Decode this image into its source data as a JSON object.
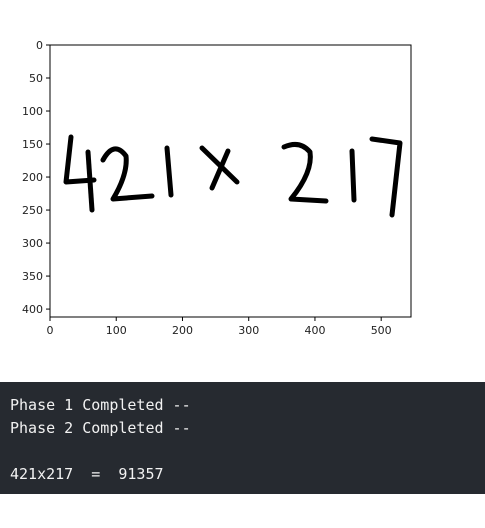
{
  "plot": {
    "y_ticks": [
      "0",
      "50",
      "100",
      "150",
      "200",
      "250",
      "300",
      "350",
      "400"
    ],
    "x_ticks": [
      "0",
      "100",
      "200",
      "300",
      "400",
      "500"
    ],
    "image_text": "421 X 217",
    "image_extent": {
      "x_max": 545,
      "y_max": 412
    },
    "ink_color": "#000000"
  },
  "terminal": {
    "lines": [
      "Phase 1 Completed --",
      "Phase 2 Completed --",
      "",
      "421x217  =  91357"
    ],
    "background": "#262a30"
  }
}
